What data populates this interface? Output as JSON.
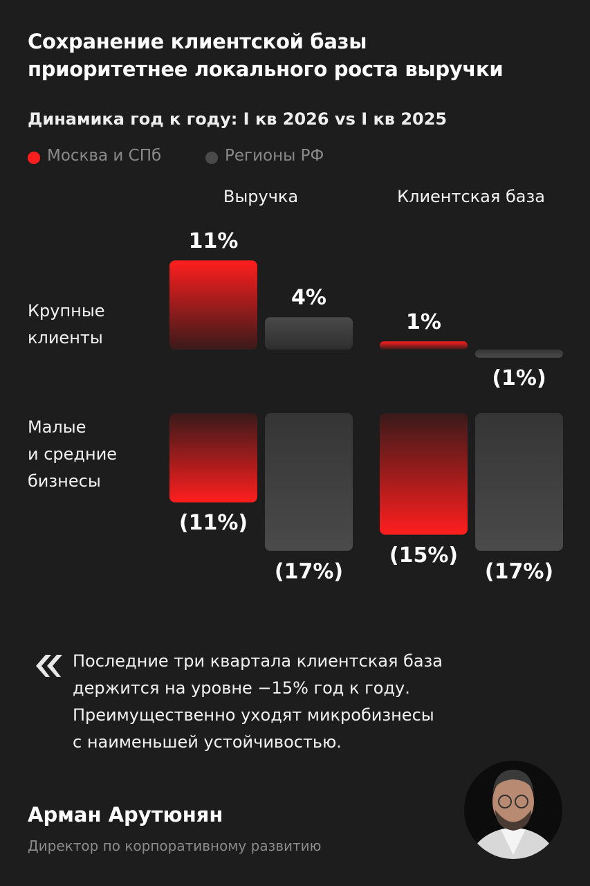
{
  "header": {
    "title": "Сохранение клиентской базы\nприоритетнее локального роста выручки"
  },
  "chart_data": {
    "type": "bar",
    "subtitle": "Динамика год к году: I кв 2026 vs I кв 2025",
    "categories": [
      "Крупные\nклиенты",
      "Малые\nи средние\nбизнесы"
    ],
    "series": [
      {
        "name": "Москва и СПб",
        "color": "#ff1e1e"
      },
      {
        "name": "Регионы РФ",
        "color": "#4a4a4a"
      }
    ],
    "panels": [
      {
        "title": "Выручка",
        "values": [
          [
            11,
            -11
          ],
          [
            4,
            -17
          ]
        ],
        "value_labels": [
          [
            "11%",
            "(11%)"
          ],
          [
            "4%",
            "(17%)"
          ]
        ]
      },
      {
        "title": "Клиентская база",
        "values": [
          [
            1,
            -15
          ],
          [
            -1,
            -17
          ]
        ],
        "value_labels": [
          [
            "1%",
            "(15%)"
          ],
          [
            "(1%)",
            "(17%)"
          ]
        ]
      }
    ]
  },
  "quote": {
    "text": "Последние три квартала клиентская база\nдержится на уровне −15% год к году.\nПреимущественно уходят микробизнесы\nс наименьшей устойчивостью."
  },
  "author": {
    "name": "Арман Арутюнян",
    "role": "Директор по корпоративному развитию"
  }
}
